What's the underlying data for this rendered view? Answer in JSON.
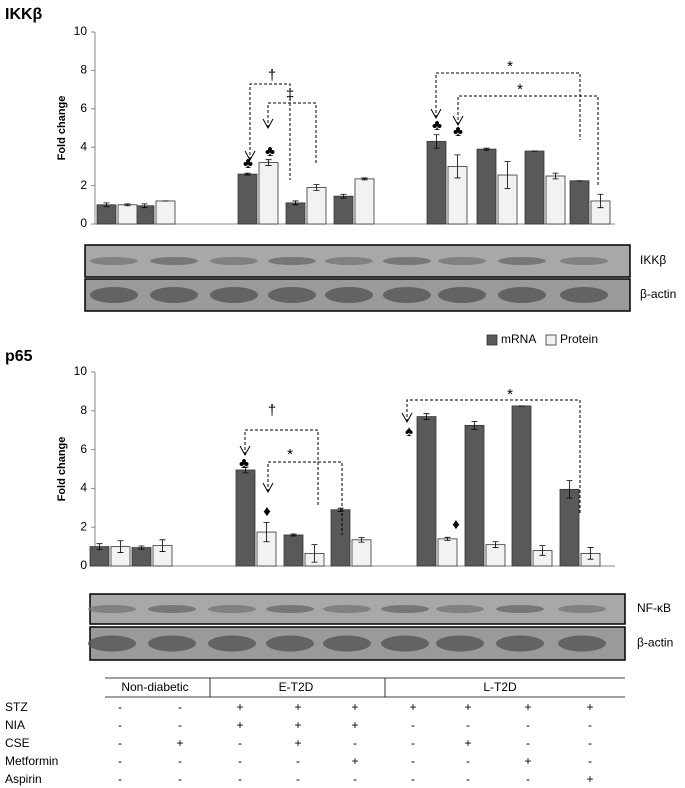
{
  "charts": [
    {
      "type": "bar",
      "title": "IKKβ",
      "y_label": "Fold change",
      "categories": [
        null,
        null,
        null,
        null,
        null,
        null,
        null,
        null,
        null
      ],
      "ylim": [
        0,
        10
      ],
      "yticks": [
        0,
        2,
        4,
        6,
        8,
        10
      ],
      "series": [
        {
          "name": "mRNA",
          "color": "#595959",
          "values": [
            1.0,
            0.95,
            2.6,
            1.1,
            1.45,
            4.3,
            3.9,
            3.8,
            2.25
          ],
          "errors": [
            0.1,
            0.1,
            0.05,
            0.1,
            0.1,
            0.35,
            0.05,
            0,
            0
          ]
        },
        {
          "name": "Protein",
          "color": "#f2f2f2",
          "values": [
            1.0,
            1.2,
            3.2,
            1.9,
            2.35,
            3.0,
            2.55,
            2.5,
            1.2
          ],
          "errors": [
            0.05,
            0,
            0.15,
            0.15,
            0.05,
            0.6,
            0.7,
            0.15,
            0.35
          ]
        }
      ],
      "annotations": [
        "♣",
        "♣",
        "♣",
        "♣",
        "†",
        "‡",
        "*",
        "*"
      ],
      "blot_labels": [
        "IKKβ",
        "β-actin"
      ]
    },
    {
      "type": "bar",
      "title": "p65",
      "y_label": "Fold change",
      "categories": [
        null,
        null,
        null,
        null,
        null,
        null,
        null,
        null,
        null
      ],
      "ylim": [
        0,
        10
      ],
      "yticks": [
        0,
        2,
        4,
        6,
        8,
        10
      ],
      "legend": "top-right",
      "series": [
        {
          "name": "mRNA",
          "color": "#595959",
          "values": [
            1.0,
            0.95,
            4.95,
            1.6,
            2.9,
            7.7,
            7.25,
            8.25,
            3.95
          ],
          "errors": [
            0.15,
            0.08,
            0.15,
            0.05,
            0.08,
            0.15,
            0.2,
            0,
            0.45
          ]
        },
        {
          "name": "Protein",
          "color": "#f2f2f2",
          "values": [
            1.0,
            1.05,
            1.75,
            0.65,
            1.35,
            1.4,
            1.1,
            0.8,
            0.65
          ],
          "errors": [
            0.3,
            0.3,
            0.5,
            0.45,
            0.12,
            0.08,
            0.15,
            0.25,
            0.3
          ]
        }
      ],
      "annotations": [
        "♣",
        "♦",
        "♠",
        "♦",
        "†",
        "*",
        "*"
      ],
      "blot_labels": [
        "NF-κB",
        "β-actin"
      ]
    }
  ],
  "table": {
    "groups": [
      "Non-diabetic",
      "E-T2D",
      "L-T2D"
    ],
    "rows": [
      {
        "label": "STZ",
        "cells": [
          "-",
          "-",
          "+",
          "+",
          "+",
          "+",
          "+",
          "+",
          "+"
        ]
      },
      {
        "label": "NIA",
        "cells": [
          "-",
          "-",
          "+",
          "+",
          "+",
          "-",
          "-",
          "-",
          "-"
        ]
      },
      {
        "label": "CSE",
        "cells": [
          "-",
          "+",
          "-",
          "+",
          "-",
          "-",
          "+",
          "-",
          "-"
        ]
      },
      {
        "label": "Metformin",
        "cells": [
          "-",
          "-",
          "-",
          "-",
          "+",
          "-",
          "-",
          "+",
          "-"
        ]
      },
      {
        "label": "Aspirin",
        "cells": [
          "-",
          "-",
          "-",
          "-",
          "-",
          "-",
          "-",
          "-",
          "+"
        ]
      }
    ]
  }
}
